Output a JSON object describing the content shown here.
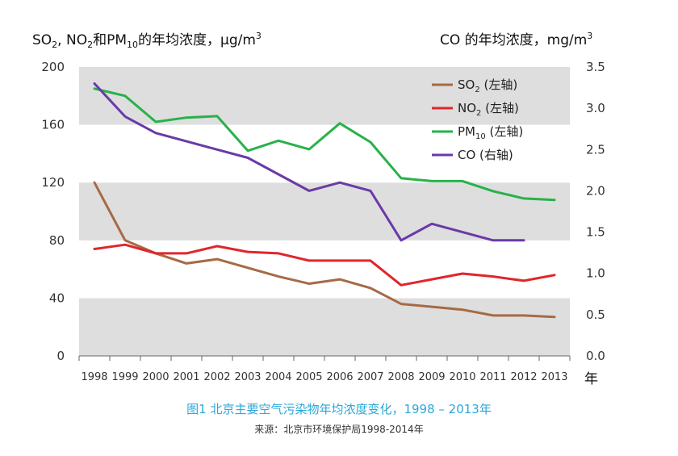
{
  "chart_data": {
    "type": "line",
    "left_axis_title": {
      "prefix": "SO",
      "so2_sub": "2",
      "mid1": ", NO",
      "no2_sub": "2",
      "mid2": "和PM",
      "pm_sub": "10",
      "suffix": "的年均浓度，μg/m",
      "sup": "3"
    },
    "right_axis_title": {
      "text": "CO 的年均浓度，mg/m",
      "sup": "3"
    },
    "x_unit_label": "年",
    "caption": "图1  北京主要空气污染物年均浓度变化，1998 – 2013年",
    "source": "来源：北京市环境保护局1998-2014年",
    "x": [
      "1998",
      "1999",
      "2000",
      "2001",
      "2002",
      "2003",
      "2004",
      "2005",
      "2006",
      "2007",
      "2008",
      "2009",
      "2010",
      "2011",
      "2012",
      "2013"
    ],
    "y_left": {
      "lim": [
        0,
        200
      ],
      "ticks": [
        "0",
        "40",
        "80",
        "120",
        "160",
        "200"
      ]
    },
    "y_right": {
      "lim": [
        0,
        3.5
      ],
      "ticks": [
        "0.0",
        "0.5",
        "1.0",
        "1.5",
        "2.0",
        "2.5",
        "3.0",
        "3.5"
      ]
    },
    "series": [
      {
        "key": "so2",
        "name_main": "SO",
        "name_sub": "2",
        "name_tail": " (左轴)",
        "axis": "left",
        "color": "#a66a45",
        "values": [
          120,
          80,
          71,
          64,
          67,
          61,
          55,
          50,
          53,
          47,
          36,
          34,
          32,
          28,
          28,
          27
        ]
      },
      {
        "key": "no2",
        "name_main": "NO",
        "name_sub": "2",
        "name_tail": " (左轴)",
        "axis": "left",
        "color": "#e0262b",
        "values": [
          74,
          77,
          71,
          71,
          76,
          72,
          71,
          66,
          66,
          66,
          49,
          53,
          57,
          55,
          52,
          56
        ]
      },
      {
        "key": "pm10",
        "name_main": "PM",
        "name_sub": "10",
        "name_tail": " (左轴)",
        "axis": "left",
        "color": "#27b24a",
        "values": [
          185,
          180,
          162,
          165,
          166,
          142,
          149,
          143,
          161,
          148,
          123,
          121,
          121,
          114,
          109,
          108
        ]
      },
      {
        "key": "co",
        "name_main": "CO",
        "name_sub": "",
        "name_tail": " (右轴)",
        "axis": "right",
        "color": "#6a3aa8",
        "values": [
          3.3,
          2.9,
          2.7,
          2.6,
          2.5,
          2.4,
          2.2,
          2.0,
          2.1,
          2.0,
          1.4,
          1.6,
          1.5,
          1.4,
          1.4,
          null
        ]
      }
    ]
  }
}
